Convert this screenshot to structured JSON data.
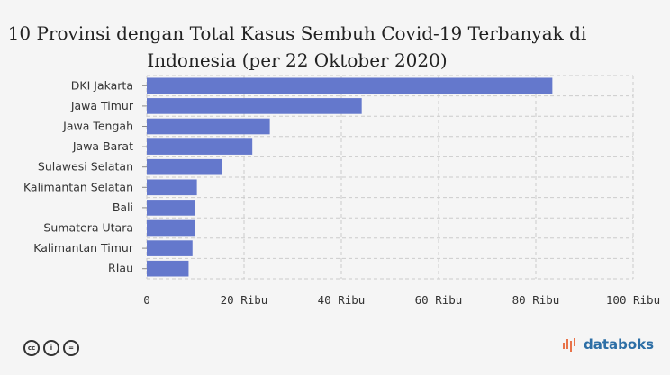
{
  "title_line1": "10 Provinsi dengan Total Kasus Sembuh Covid-19 Terbanyak di",
  "title_line2": "Indonesia (per 22 Oktober 2020)",
  "brand": "databoks",
  "chart_data": {
    "type": "bar",
    "orientation": "horizontal",
    "categories": [
      "DKI Jakarta",
      "Jawa Timur",
      "Jawa Tengah",
      "Jawa Barat",
      "Sulawesi Selatan",
      "Kalimantan Selatan",
      "Bali",
      "Sumatera Utara",
      "Kalimantan Timur",
      "RIau"
    ],
    "values": [
      83400,
      44200,
      25300,
      21700,
      15400,
      10300,
      9900,
      9900,
      9400,
      8600
    ],
    "xlim": [
      0,
      100000
    ],
    "xticks": [
      0,
      20000,
      40000,
      60000,
      80000,
      100000
    ],
    "xtick_labels": [
      "0",
      "20 Ribu",
      "40 Ribu",
      "60 Ribu",
      "80 Ribu",
      "100 Ribu"
    ],
    "bar_color": "#6478cc",
    "grid": true
  }
}
